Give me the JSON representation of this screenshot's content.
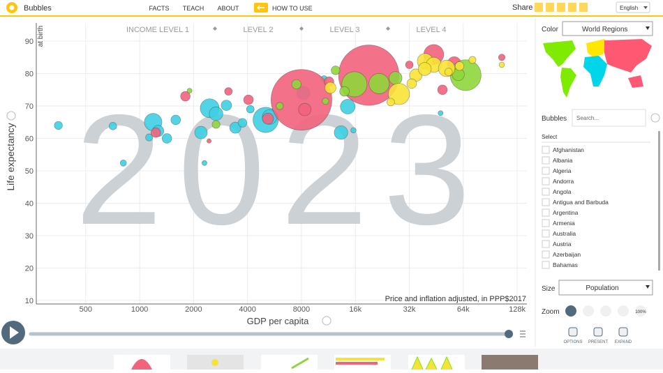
{
  "header": {
    "app": "Bubbles",
    "nav": [
      "FACTS",
      "TEACH",
      "ABOUT"
    ],
    "how_to_use": "HOW TO USE",
    "share": "Share",
    "language": "English"
  },
  "chart_data": {
    "type": "scatter",
    "year": "2023",
    "y_label": "Life expectancy",
    "y_sublabel": "at birth",
    "x_label": "GDP per capita",
    "x_note": "Price and inflation adjusted, in PPP$2017",
    "income_levels": [
      "INCOME LEVEL 1",
      "LEVEL 2",
      "LEVEL 3",
      "LEVEL 4"
    ],
    "x_scale": "log",
    "xlim": [
      265,
      145000
    ],
    "ylim": [
      8.9,
      95.6
    ],
    "xticks": [
      500,
      1000,
      2000,
      4000,
      8000,
      {
        "value": 16000,
        "label": "16k"
      },
      {
        "value": 32000,
        "label": "32k"
      },
      {
        "value": 64000,
        "label": "64k"
      },
      {
        "value": 128000,
        "label": "128k"
      }
    ],
    "yticks": [
      10,
      20,
      30,
      40,
      50,
      60,
      70,
      80,
      90
    ],
    "grid": true,
    "series": [
      {
        "color": "#3dcfe3",
        "x": [
          352,
          709,
          811,
          1130,
          1190,
          1270,
          1420,
          1590,
          2200,
          2460,
          2300,
          2670,
          3050,
          3420,
          3750,
          5050,
          5320,
          4150,
          8200,
          13300,
          10700,
          15600,
          47800,
          14500
        ],
        "values": [
          64,
          63.8,
          52.4,
          60.3,
          65,
          62.3,
          60,
          65.7,
          61.8,
          69.3,
          52.4,
          67.6,
          70.2,
          63.3,
          64.8,
          65.7,
          66.6,
          69,
          74,
          61.8,
          78.4,
          62.5,
          67.8,
          69.8
        ],
        "sizes": [
          12,
          10,
          5,
          8,
          93,
          30,
          20,
          20,
          40,
          110,
          2,
          50,
          25,
          30,
          15,
          215,
          60,
          10,
          45,
          50,
          5,
          3,
          2,
          60
        ]
      },
      {
        "color": "#f2637c",
        "x": [
          8000,
          19000,
          1800,
          1230,
          2440,
          3130,
          4050,
          8350,
          5200,
          43800,
          49000,
          105000,
          57000,
          32000,
          11400
        ],
        "values": [
          71.9,
          79.5,
          73,
          61.8,
          59.2,
          74.5,
          71.9,
          68.9,
          66.1,
          85.9,
          75,
          85,
          83.1,
          82.7,
          77.5
        ],
        "sizes": [
          1430,
          1410,
          20,
          20,
          1,
          10,
          20,
          40,
          30,
          125,
          20,
          6,
          50,
          10,
          20
        ]
      },
      {
        "color": "#8fd63c",
        "x": [
          66000,
          15800,
          12400,
          21700,
          1900,
          2670,
          6050,
          7500,
          13900,
          40400,
          60000,
          10900,
          26800
        ],
        "values": [
          79.5,
          76.7,
          81,
          76.9,
          74.7,
          64.3,
          70,
          76.7,
          74.5,
          84,
          79.7,
          71.5,
          78.6
        ],
        "sizes": [
          335,
          215,
          15,
          130,
          2,
          11,
          8,
          18,
          20,
          8,
          38,
          6,
          45
        ]
      },
      {
        "color": "#f7e337",
        "x": [
          28000,
          34800,
          39200,
          43800,
          51700,
          39000,
          72000,
          105000,
          25200,
          11600,
          61000,
          33000,
          53000
        ],
        "values": [
          73.7,
          79.5,
          83.8,
          82.7,
          81.6,
          81.4,
          84.2,
          82.7,
          71.2,
          75.6,
          82.3,
          76.9,
          80.5
        ],
        "sizes": [
          145,
          40,
          70,
          65,
          80,
          45,
          8,
          3,
          10,
          30,
          15,
          20,
          10
        ]
      }
    ]
  },
  "panel": {
    "color_label": "Color",
    "color_value": "World Regions",
    "bubbles_label": "Bubbles",
    "search_placeholder": "Search...",
    "select_label": "Select",
    "countries": [
      "Afghanistan",
      "Albania",
      "Algeria",
      "Andorra",
      "Angola",
      "Antigua and Barbuda",
      "Argentina",
      "Armenia",
      "Australia",
      "Austria",
      "Azerbaijan",
      "Bahamas"
    ],
    "size_label": "Size",
    "size_value": "Population",
    "zoom_label": "Zoom",
    "zoom_percent": "100%",
    "buttons": [
      "OPTIONS",
      "PRESENT",
      "EXPAND"
    ]
  }
}
